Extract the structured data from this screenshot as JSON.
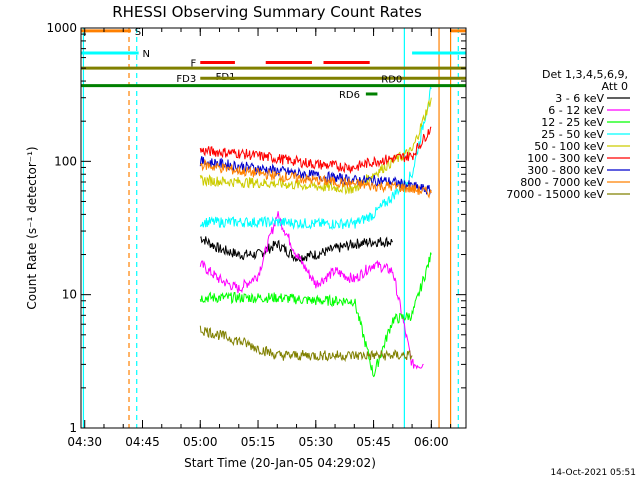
{
  "chart_data": {
    "type": "line",
    "title": "RHESSI Observing Summary Count Rates",
    "xlabel": "Start Time (20-Jan-05 04:29:02)",
    "ylabel": "Count Rate (s⁻¹ detector⁻¹)",
    "y_scale": "log",
    "ylim": [
      1,
      1000
    ],
    "xlim": [
      "04:29:02",
      "06:09:00"
    ],
    "x_ticks": [
      "04:30",
      "04:45",
      "05:00",
      "05:15",
      "05:30",
      "05:45",
      "06:00"
    ],
    "y_ticks": [
      "1",
      "10",
      "100",
      "1000"
    ],
    "legend_title": [
      "Det 1,3,4,5,6,9,",
      "Att 0"
    ],
    "legend_position": "right",
    "series": [
      {
        "name": "3 - 6 keV",
        "color": "#000000",
        "x": [
          "05:00",
          "05:05",
          "05:10",
          "05:15",
          "05:20",
          "05:25",
          "05:30",
          "05:35",
          "05:40",
          "05:45",
          "05:50"
        ],
        "values": [
          27,
          22,
          20,
          20,
          24,
          19,
          20,
          22,
          24,
          25,
          25
        ]
      },
      {
        "name": "6 - 12 keV",
        "color": "#ff00ff",
        "x": [
          "05:00",
          "05:05",
          "05:10",
          "05:15",
          "05:20",
          "05:25",
          "05:30",
          "05:35",
          "05:40",
          "05:45",
          "05:50",
          "05:55",
          "05:58"
        ],
        "values": [
          17,
          13,
          11,
          14,
          40,
          20,
          12,
          15,
          13,
          17,
          15,
          3,
          3
        ]
      },
      {
        "name": "12 - 25 keV",
        "color": "#00ff00",
        "x": [
          "05:00",
          "05:10",
          "05:20",
          "05:30",
          "05:40",
          "05:45",
          "05:50",
          "05:55",
          "06:00"
        ],
        "values": [
          9.5,
          9.5,
          9.5,
          9,
          9,
          2.5,
          6.5,
          7,
          20
        ]
      },
      {
        "name": "25 - 50 keV",
        "color": "#00ffff",
        "x": [
          "05:00",
          "05:10",
          "05:20",
          "05:30",
          "05:40",
          "05:45",
          "05:50",
          "05:55",
          "06:00"
        ],
        "values": [
          35,
          35,
          35,
          34,
          34,
          40,
          55,
          80,
          350
        ]
      },
      {
        "name": "50 - 100 keV",
        "color": "#cccc00",
        "x": [
          "05:00",
          "05:10",
          "05:20",
          "05:30",
          "05:40",
          "05:45",
          "05:50",
          "05:55",
          "06:00"
        ],
        "values": [
          72,
          70,
          68,
          65,
          62,
          80,
          100,
          120,
          300
        ]
      },
      {
        "name": "100 - 300 keV",
        "color": "#ff0000",
        "x": [
          "05:00",
          "05:10",
          "05:20",
          "05:30",
          "05:40",
          "05:45",
          "05:50",
          "05:55",
          "06:00"
        ],
        "values": [
          120,
          115,
          105,
          95,
          90,
          100,
          105,
          110,
          180
        ]
      },
      {
        "name": "300 - 800 keV",
        "color": "#0000cc",
        "x": [
          "05:00",
          "05:10",
          "05:20",
          "05:30",
          "05:40",
          "05:45",
          "05:50",
          "05:55",
          "06:00"
        ],
        "values": [
          100,
          92,
          85,
          78,
          72,
          72,
          70,
          65,
          60
        ]
      },
      {
        "name": "800 - 7000 keV",
        "color": "#ff8000",
        "x": [
          "05:00",
          "05:10",
          "05:20",
          "05:30",
          "05:40",
          "05:45",
          "05:50",
          "05:55",
          "06:00"
        ],
        "values": [
          95,
          85,
          78,
          72,
          68,
          65,
          65,
          62,
          58
        ]
      },
      {
        "name": "7000 - 15000 keV",
        "color": "#808000",
        "x": [
          "05:00",
          "05:10",
          "05:20",
          "05:30",
          "05:40",
          "05:45",
          "05:50",
          "05:55"
        ],
        "values": [
          5.5,
          4.5,
          3.5,
          3.5,
          3.5,
          3.5,
          3.5,
          3.5
        ]
      }
    ],
    "flag_bars": [
      {
        "label": "S",
        "color": "#ff8000",
        "segments": [
          [
            "04:29:02",
            "04:42"
          ],
          [
            "06:05",
            "06:09"
          ]
        ],
        "y": 952
      },
      {
        "label": "N",
        "color": "#00ffff",
        "segments": [
          [
            "04:29:02",
            "04:44"
          ],
          [
            "05:55",
            "06:09"
          ]
        ],
        "y": 650
      },
      {
        "label": "F",
        "color": "#ff0000",
        "segments": [
          [
            "05:00",
            "05:09"
          ],
          [
            "05:17",
            "05:29"
          ],
          [
            "05:32",
            "05:44"
          ]
        ],
        "y": 551
      },
      {
        "label": "FD1",
        "color": "#808000",
        "segments": [
          [
            "04:29:02",
            "06:09"
          ]
        ],
        "y": 500
      },
      {
        "label": "FD3",
        "color": "#808000",
        "segments": [
          [
            "05:00",
            "06:09"
          ]
        ],
        "y": 420
      },
      {
        "label": "RD0",
        "color": "#008000",
        "segments": [
          [
            "04:29:02",
            "06:09"
          ]
        ],
        "y": 370
      },
      {
        "label": "RD6",
        "color": "#008000",
        "segments": [
          [
            "05:43",
            "05:46"
          ]
        ],
        "y": 320
      }
    ],
    "vertical_markers": [
      {
        "x": "04:29:40",
        "color": "#00ffff",
        "style": "solid"
      },
      {
        "x": "04:41:30",
        "color": "#ff8000",
        "style": "dashed"
      },
      {
        "x": "04:43:30",
        "color": "#00ffff",
        "style": "dashed"
      },
      {
        "x": "05:53:00",
        "color": "#00ffff",
        "style": "solid"
      },
      {
        "x": "06:02:00",
        "color": "#ff8000",
        "style": "solid"
      },
      {
        "x": "06:05:00",
        "color": "#ff8000",
        "style": "solid"
      },
      {
        "x": "06:07:00",
        "color": "#00ffff",
        "style": "dashed"
      }
    ]
  },
  "footer": {
    "timestamp": "14-Oct-2021 05:51"
  }
}
